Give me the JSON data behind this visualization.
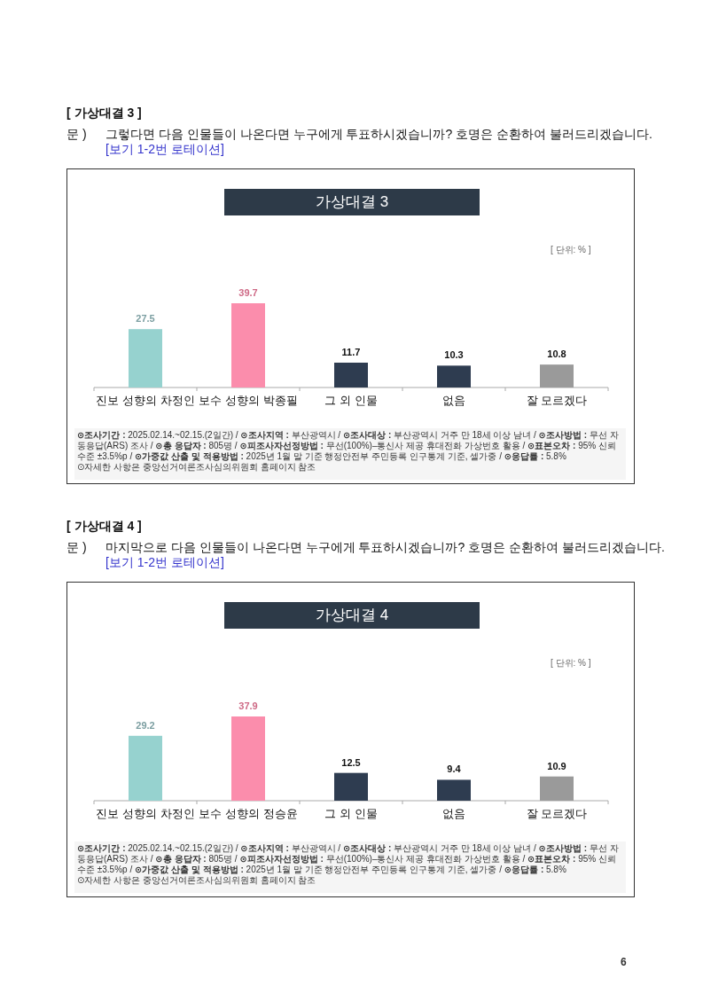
{
  "chart_data": [
    {
      "type": "bar",
      "title": "가상대결 3",
      "subtitle": "그렇다면 다음 인물들이 나온다면 누구에게 투표하시겠습니까? 호명은 순환하여 불러드리겠습니다.",
      "annotations": [
        "[ 가상대결 3 ]",
        "문 )",
        "[보기 1-2번 로테이션]",
        "[ 단위: % ]",
        "⊙조사기간 : 2025.02.14.~02.15.(2일간) / ⊙조사지역 : 부산광역시 / ⊙조사대상 : 부산광역시 거주 만 18세 이상 남녀 / ⊙조사방법 : 무선 자동응답(ARS) 조사 / ⊙총 응답자 : 805명 / ⊙피조사자선정방법 : 무선(100%)–통신사 제공 휴대전화 가상번호 활용 / ⊙표본오차 : 95% 신뢰수준 ±3.5%p / ⊙가중값 산출 및 적용방법 : 2025년 1월 말 기준 행정안전부 주민등록 인구통계 기준, 셀가중 / ⊙응답률 : 5.8%",
        "⊙자세한 사항은 중앙선거여론조사심의위원회 홈페이지 참조"
      ],
      "categories": [
        "진보 성향의 차정인",
        "보수 성향의 박종필",
        "그 외 인물",
        "없음",
        "잘 모르겠다"
      ],
      "values": [
        27.5,
        39.7,
        11.7,
        10.3,
        10.8
      ],
      "colors": [
        "#96d2cf",
        "#fb8dac",
        "#2e3c50",
        "#2e3c50",
        "#9a9a9a"
      ],
      "data_labels": true
    },
    {
      "type": "bar",
      "title": "가상대결 4",
      "subtitle": "마지막으로 다음 인물들이 나온다면 누구에게 투표하시겠습니까? 호명은 순환하여 불러드리겠습니다.",
      "annotations": [
        "[ 가상대결 4 ]",
        "문 )",
        "[보기 1-2번 로테이션]",
        "[ 단위: % ]",
        "⊙조사기간 : 2025.02.14.~02.15.(2일간) / ⊙조사지역 : 부산광역시 / ⊙조사대상 : 부산광역시 거주 만 18세 이상 남녀 / ⊙조사방법 : 무선 자동응답(ARS) 조사 / ⊙총 응답자 : 805명 / ⊙피조사자선정방법 : 무선(100%)–통신사 제공 휴대전화 가상번호 활용 / ⊙표본오차 : 95% 신뢰수준 ±3.5%p / ⊙가중값 산출 및 적용방법 : 2025년 1월 말 기준 행정안전부 주민등록 인구통계 기준, 셀가중 / ⊙응답률 : 5.8%",
        "⊙자세한 사항은 중앙선거여론조사심의위원회 홈페이지 참조",
        "6"
      ],
      "categories": [
        "진보 성향의 차정인",
        "보수 성향의 정승윤",
        "그 외 인물",
        "없음",
        "잘 모르겠다"
      ],
      "values": [
        29.2,
        37.9,
        12.5,
        9.4,
        10.9
      ],
      "colors": [
        "#96d2cf",
        "#fb8dac",
        "#2e3c50",
        "#2e3c50",
        "#9a9a9a"
      ],
      "data_labels": true
    }
  ]
}
